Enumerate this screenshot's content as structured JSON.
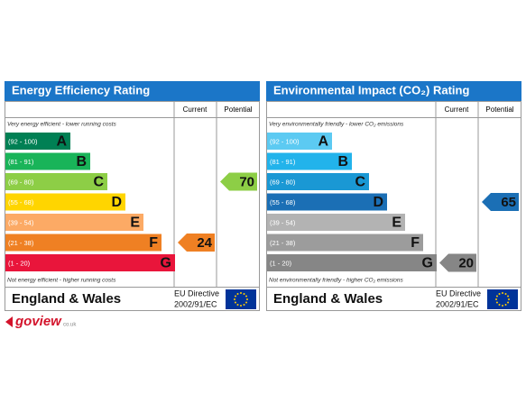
{
  "panels": [
    {
      "title": "Energy Efficiency Rating",
      "col_current": "Current",
      "col_potential": "Potential",
      "top_note": "Very energy efficient - lower running costs",
      "bottom_note": "Not energy efficient - higher running costs",
      "bands": [
        {
          "range": "(92 - 100)",
          "letter": "A",
          "color": "#008054"
        },
        {
          "range": "(81 - 91)",
          "letter": "B",
          "color": "#19b459"
        },
        {
          "range": "(69 - 80)",
          "letter": "C",
          "color": "#8dce46"
        },
        {
          "range": "(55 - 68)",
          "letter": "D",
          "color": "#ffd500"
        },
        {
          "range": "(39 - 54)",
          "letter": "E",
          "color": "#fcaa65"
        },
        {
          "range": "(21 - 38)",
          "letter": "F",
          "color": "#ef8023"
        },
        {
          "range": "(1 - 20)",
          "letter": "G",
          "color": "#e9153b"
        }
      ],
      "current": 24,
      "potential": 70,
      "footer": "England & Wales",
      "directive": "EU Directive",
      "directive_code": "2002/91/EC"
    },
    {
      "title": "Environmental Impact (CO₂) Rating",
      "col_current": "Current",
      "col_potential": "Potential",
      "top_note": "Very environmentally friendly - lower CO₂ emissions",
      "bottom_note": "Not environmentally friendly - higher CO₂ emissions",
      "bands": [
        {
          "range": "(92 - 100)",
          "letter": "A",
          "color": "#5ccaf2"
        },
        {
          "range": "(81 - 91)",
          "letter": "B",
          "color": "#22b3eb"
        },
        {
          "range": "(69 - 80)",
          "letter": "C",
          "color": "#1a98d4"
        },
        {
          "range": "(55 - 68)",
          "letter": "D",
          "color": "#1b6fb5"
        },
        {
          "range": "(39 - 54)",
          "letter": "E",
          "color": "#b3b3b3"
        },
        {
          "range": "(21 - 38)",
          "letter": "F",
          "color": "#9c9c9c"
        },
        {
          "range": "(1 - 20)",
          "letter": "G",
          "color": "#868686"
        }
      ],
      "current": 20,
      "potential": 65,
      "footer": "England & Wales",
      "directive": "EU Directive",
      "directive_code": "2002/91/EC"
    }
  ],
  "logo": "goview",
  "logo_suffix": "co.uk"
}
